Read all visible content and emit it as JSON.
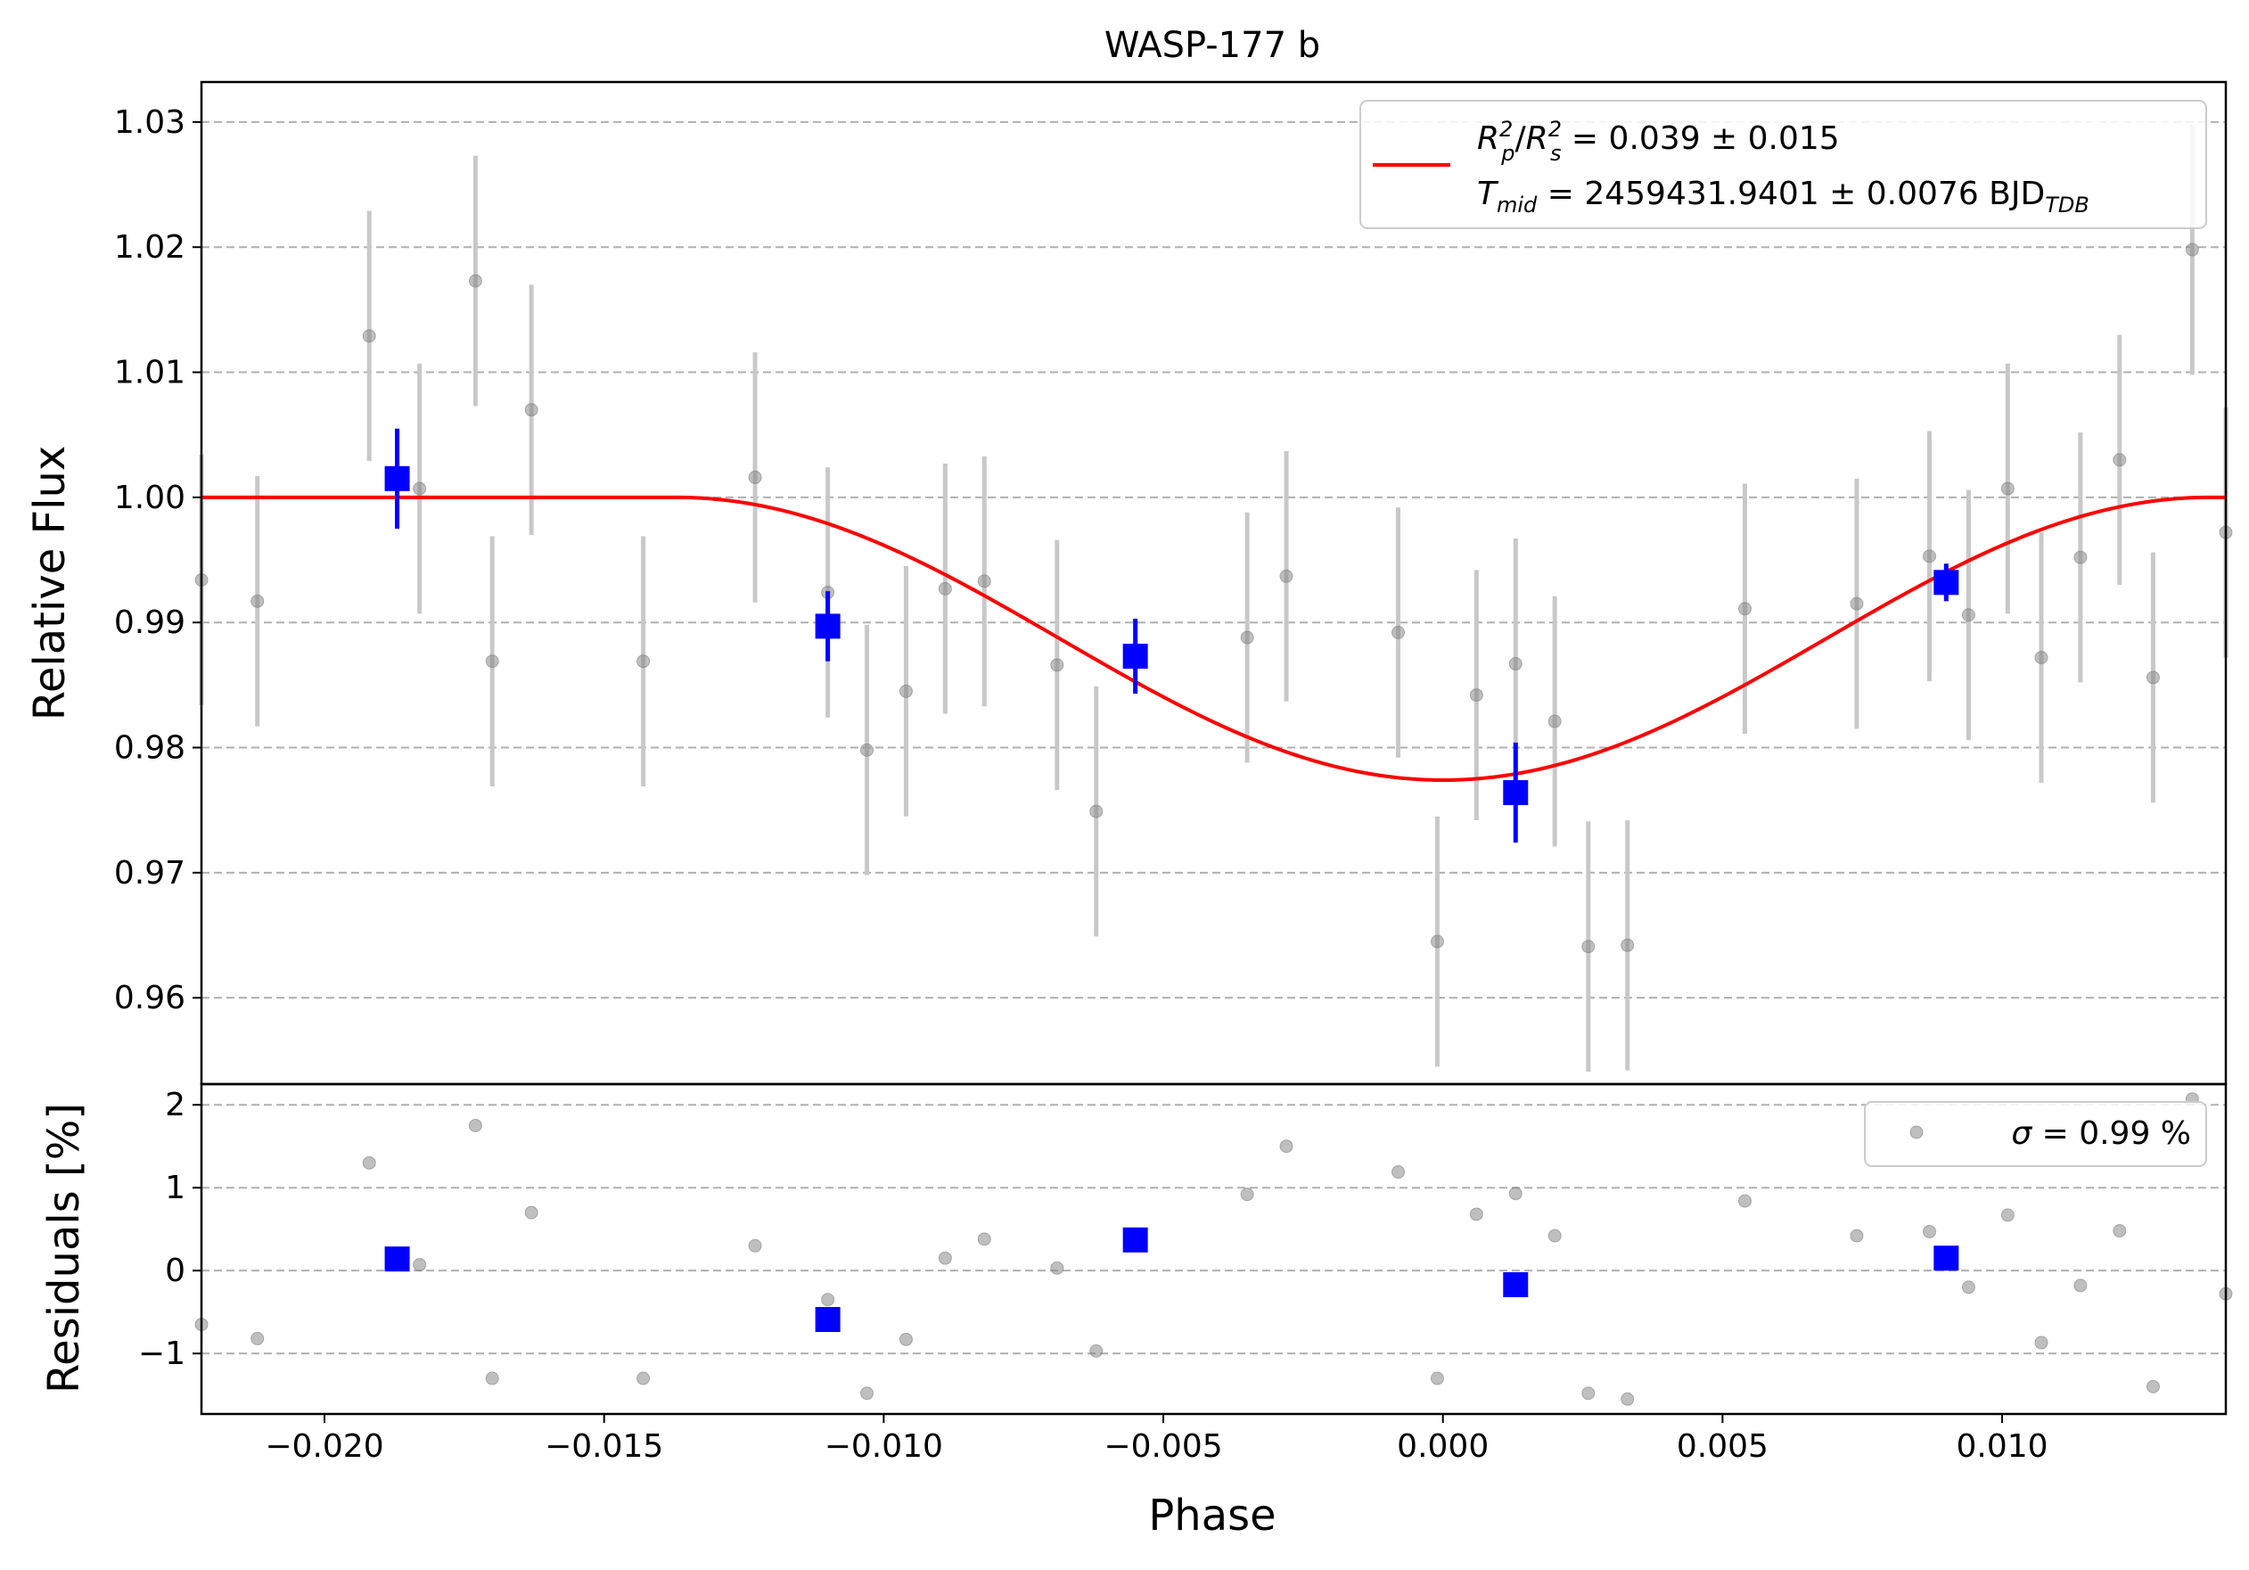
{
  "chart_data": [
    {
      "type": "scatter",
      "panel": "main",
      "title": "WASP-177 b",
      "xlabel": "",
      "ylabel": "Relative Flux",
      "xlim": [
        -0.0222,
        0.014
      ],
      "ylim": [
        0.9531,
        1.0332
      ],
      "y_ticks": [
        0.96,
        0.97,
        0.98,
        0.99,
        1.0,
        1.01,
        1.02,
        1.03
      ],
      "y_tick_labels": [
        "0.96",
        "0.97",
        "0.98",
        "0.99",
        "1.00",
        "1.01",
        "1.02",
        "1.03"
      ],
      "grid": "horizontal dashed",
      "legend_position": "top-right",
      "legend": {
        "fit_label": {
          "rp": "R",
          "rp_sup": "2",
          "rp_sub": "p",
          "slash": "/",
          "rs": "R",
          "rs_sup": "2",
          "rs_sub": "s",
          "value": " = 0.039 ± 0.015"
        },
        "tmid_label": {
          "t": "T",
          "t_sub": "mid",
          "value": " = 2459431.9401 ± 0.0076 BJD",
          "bjd_sub": "TDB"
        }
      },
      "series": [
        {
          "kind": "raw",
          "color": "#808080",
          "x": [
            -0.0222,
            -0.0212,
            -0.0192,
            -0.0183,
            -0.0173,
            -0.017,
            -0.0163,
            -0.0143,
            -0.0123,
            -0.011,
            -0.0103,
            -0.0096,
            -0.0089,
            -0.0082,
            -0.0069,
            -0.0062,
            -0.0035,
            -0.0028,
            -0.0008,
            -0.0001,
            0.0006,
            0.0013,
            0.002,
            0.0026,
            0.0033,
            0.0054,
            0.0074,
            0.0087,
            0.0094,
            0.0101,
            0.0107,
            0.0114,
            0.0121,
            0.0127,
            0.0134,
            0.014
          ],
          "y": [
            0.9934,
            0.9917,
            1.0129,
            1.0007,
            1.0173,
            0.9869,
            1.007,
            0.9869,
            1.0016,
            0.9924,
            0.9798,
            0.9845,
            0.9927,
            0.9933,
            0.9866,
            0.9749,
            0.9888,
            0.9937,
            0.9892,
            0.9645,
            0.9842,
            0.9867,
            0.9821,
            0.9641,
            0.9642,
            0.9911,
            0.9915,
            0.9953,
            0.9906,
            1.0007,
            0.9872,
            0.9952,
            1.003,
            0.9856,
            1.0198,
            0.9972
          ],
          "yerr": 0.01
        },
        {
          "kind": "binned",
          "color": "#0000ff",
          "x": [
            -0.0187,
            -0.011,
            -0.0055,
            0.0013,
            0.009
          ],
          "y": [
            1.0015,
            0.9897,
            0.9873,
            0.9764,
            0.9932
          ],
          "yerr": [
            0.004,
            0.0028,
            0.003,
            0.004,
            0.0015
          ]
        },
        {
          "kind": "model",
          "color": "#ff0000",
          "shape": "transit",
          "baseline": 1.0,
          "depth": 0.0226,
          "half_duration": 0.0137
        }
      ]
    },
    {
      "type": "scatter",
      "panel": "residuals",
      "xlabel": "Phase",
      "ylabel": "Residuals [%]",
      "xlim": [
        -0.0222,
        0.014
      ],
      "ylim": [
        -1.73,
        2.25
      ],
      "x_ticks": [
        -0.02,
        -0.015,
        -0.01,
        -0.005,
        0.0,
        0.005,
        0.01
      ],
      "x_tick_labels": [
        "−0.020",
        "−0.015",
        "−0.010",
        "−0.005",
        "0.000",
        "0.005",
        "0.010"
      ],
      "y_ticks": [
        -1,
        0,
        1,
        2
      ],
      "y_tick_labels": [
        "−1",
        "0",
        "1",
        "2"
      ],
      "grid": "horizontal dashed",
      "legend_position": "top-right",
      "legend": {
        "sigma_symbol": "σ",
        "sigma_value": " = 0.99 %"
      },
      "series": [
        {
          "kind": "raw",
          "color": "#808080",
          "x": [
            -0.0222,
            -0.0212,
            -0.0192,
            -0.0183,
            -0.0173,
            -0.017,
            -0.0163,
            -0.0143,
            -0.0123,
            -0.011,
            -0.0103,
            -0.0096,
            -0.0089,
            -0.0082,
            -0.0069,
            -0.0062,
            -0.0035,
            -0.0028,
            -0.0008,
            -0.0001,
            0.0006,
            0.0013,
            0.002,
            0.0026,
            0.0033,
            0.0054,
            0.0074,
            0.0087,
            0.0094,
            0.0101,
            0.0107,
            0.0114,
            0.0121,
            0.0127,
            0.0134,
            0.014
          ],
          "y": [
            -0.65,
            -0.82,
            1.3,
            0.07,
            1.75,
            -1.3,
            0.7,
            -1.3,
            0.3,
            -0.35,
            -1.48,
            -0.83,
            0.15,
            0.38,
            0.03,
            -0.97,
            0.92,
            1.5,
            1.19,
            -1.3,
            0.68,
            0.93,
            0.42,
            -1.48,
            -1.55,
            0.84,
            0.42,
            0.47,
            -0.2,
            0.67,
            -0.87,
            -0.18,
            0.48,
            -1.4,
            2.07,
            -0.28
          ]
        },
        {
          "kind": "binned",
          "color": "#0000ff",
          "x": [
            -0.0187,
            -0.011,
            -0.0055,
            0.0013,
            0.009
          ],
          "y": [
            0.14,
            -0.59,
            0.37,
            -0.17,
            0.15
          ]
        }
      ]
    }
  ]
}
